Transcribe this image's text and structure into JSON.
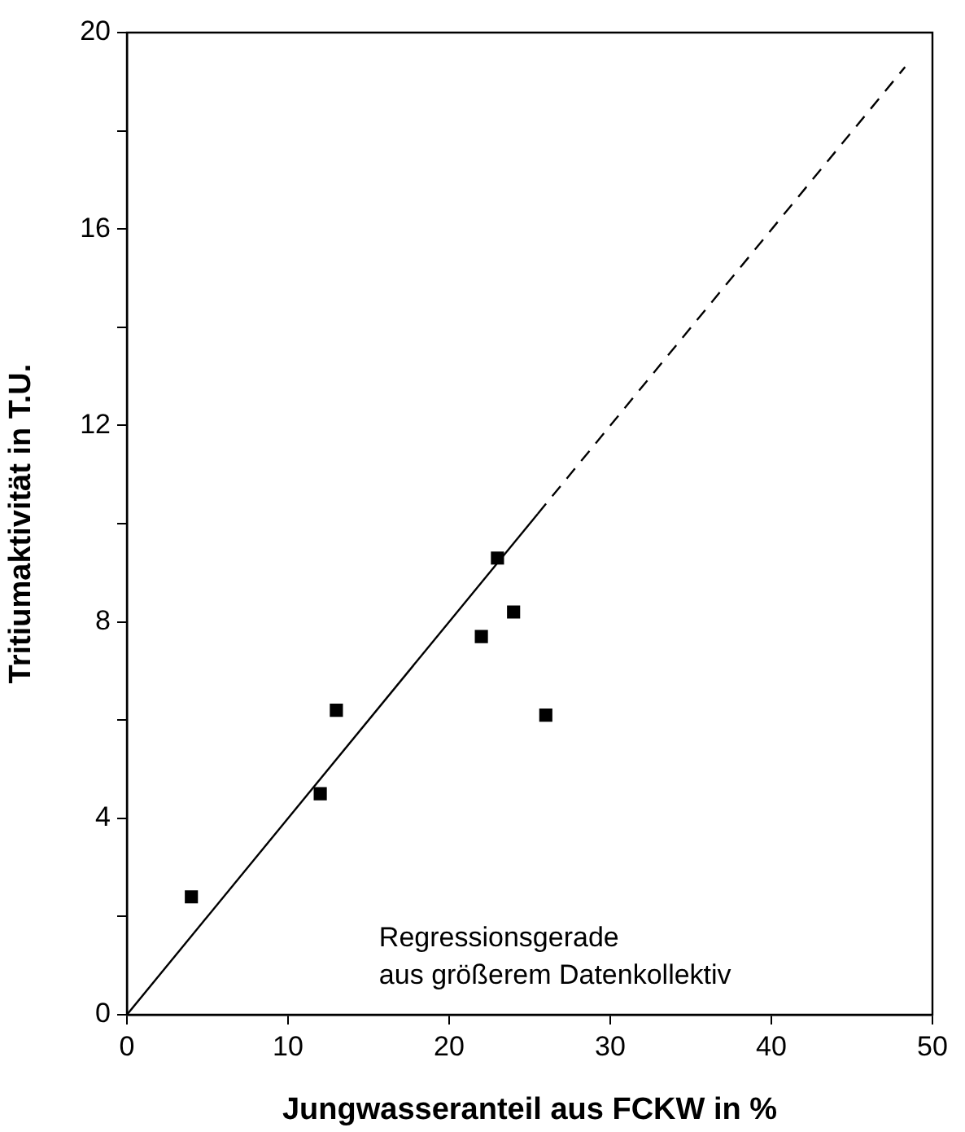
{
  "chart_data": {
    "type": "scatter",
    "xlabel": "Jungwasseranteil aus FCKW in %",
    "ylabel": "Tritiumaktivität in T.U.",
    "x": [
      4,
      12,
      13,
      22,
      23,
      24,
      26
    ],
    "values": [
      2.4,
      4.5,
      6.2,
      7.7,
      9.3,
      8.2,
      6.1
    ],
    "color": "#000000",
    "marker": "square",
    "series": [
      {
        "type": "line",
        "x": [
          0,
          25.5
        ],
        "values": [
          0,
          10.2
        ],
        "color": "#000000",
        "line_style": "solid",
        "marker": "none"
      },
      {
        "type": "line",
        "x": [
          25.5,
          48.3
        ],
        "values": [
          10.2,
          19.3
        ],
        "color": "#000000",
        "line_style": "dashed",
        "marker": "none"
      }
    ],
    "xlim": [
      0,
      50
    ],
    "xticks": [
      0,
      10,
      20,
      30,
      40,
      50
    ],
    "ylim": [
      0,
      20
    ],
    "yticks": [
      0,
      {
        "value": 2,
        "label": null
      },
      4,
      {
        "value": 6,
        "label": null
      },
      8,
      {
        "value": 10,
        "label": null
      },
      12,
      {
        "value": 14,
        "label": null
      },
      16,
      {
        "value": 18,
        "label": null
      },
      20
    ],
    "grid": false,
    "legend": false,
    "annotations": [
      "Regressionsgerade\naus größerem Datenkollektiv"
    ]
  }
}
